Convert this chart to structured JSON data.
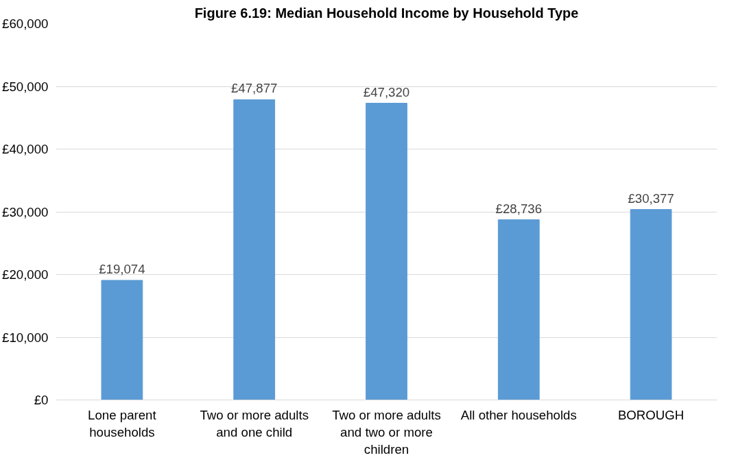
{
  "chart_data": {
    "type": "bar",
    "title": "Figure 6.19: Median Household Income by Household Type",
    "categories": [
      "Lone parent households",
      "Two or more adults and one child",
      "Two or more adults and two or more children",
      "All other households",
      "BOROUGH"
    ],
    "values": [
      19074,
      47877,
      47320,
      28736,
      30377
    ],
    "value_labels": [
      "£19,074",
      "£47,877",
      "£47,320",
      "£28,736",
      "£30,377"
    ],
    "color": "#5b9bd5",
    "ylim": [
      0,
      60000
    ],
    "yticks": [
      {
        "value": 0,
        "label": "£0"
      },
      {
        "value": 10000,
        "label": "£10,000"
      },
      {
        "value": 20000,
        "label": "£20,000"
      },
      {
        "value": 30000,
        "label": "£30,000"
      },
      {
        "value": 40000,
        "label": "£40,000"
      },
      {
        "value": 50000,
        "label": "£50,000"
      },
      {
        "value": 60000,
        "label": "£60,000"
      }
    ],
    "grid": "y"
  }
}
